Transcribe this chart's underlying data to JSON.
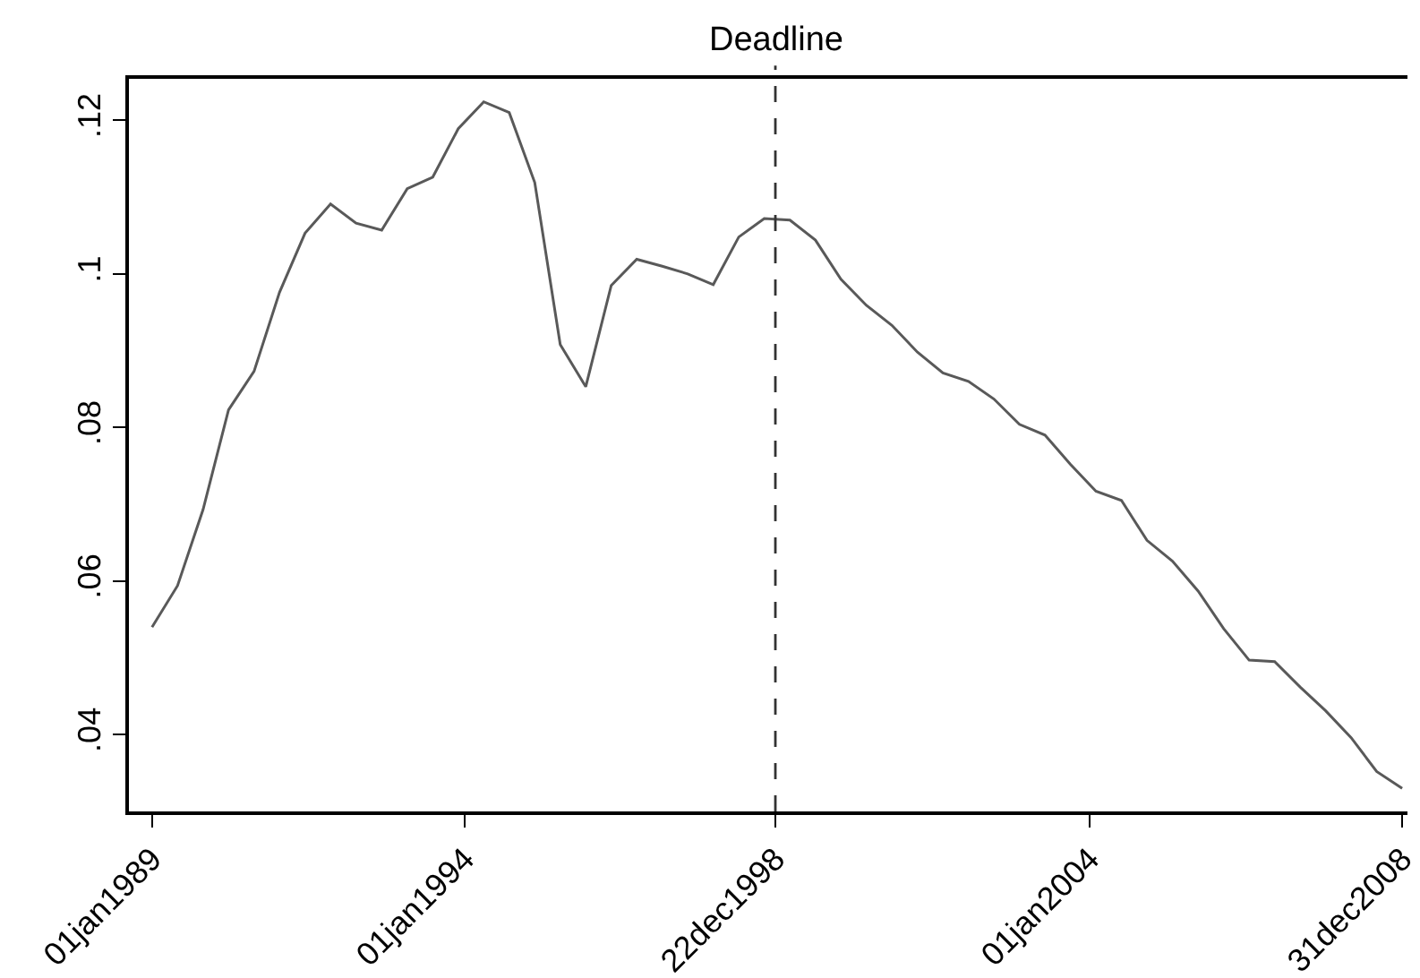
{
  "chart_data": {
    "type": "line",
    "x": [
      "1989-01-01",
      "1989-05-30",
      "1989-10-26",
      "1990-03-24",
      "1990-08-20",
      "1991-01-16",
      "1991-06-14",
      "1991-11-10",
      "1992-04-07",
      "1992-09-04",
      "1993-01-31",
      "1993-06-29",
      "1993-11-25",
      "1994-04-23",
      "1994-09-19",
      "1995-02-15",
      "1995-07-14",
      "1995-12-10",
      "1996-05-07",
      "1996-10-03",
      "1997-03-01",
      "1997-07-28",
      "1997-12-24",
      "1998-05-22",
      "1998-10-18",
      "1999-03-17",
      "1999-08-13",
      "2000-01-09",
      "2000-06-06",
      "2000-11-02",
      "2001-03-31",
      "2001-08-27",
      "2002-01-23",
      "2002-06-21",
      "2002-11-17",
      "2003-04-15",
      "2003-09-11",
      "2004-02-07",
      "2004-07-05",
      "2004-12-01",
      "2005-04-29",
      "2005-09-26",
      "2006-02-22",
      "2006-07-21",
      "2006-12-17",
      "2007-05-15",
      "2007-10-11",
      "2008-03-08",
      "2008-08-04",
      "2008-12-31"
    ],
    "series": [
      {
        "color": "#595959",
        "values": [
          0.054,
          0.0594,
          0.0693,
          0.0823,
          0.0873,
          0.0976,
          0.1053,
          0.1091,
          0.1066,
          0.1057,
          0.1111,
          0.1126,
          0.1189,
          0.1224,
          0.121,
          0.1119,
          0.0908,
          0.0853,
          0.0985,
          0.1019,
          0.101,
          0.1,
          0.0986,
          0.1048,
          0.1072,
          0.107,
          0.1044,
          0.0993,
          0.0959,
          0.0933,
          0.0898,
          0.0871,
          0.086,
          0.0837,
          0.0804,
          0.079,
          0.0752,
          0.0717,
          0.0705,
          0.0653,
          0.0626,
          0.0587,
          0.0538,
          0.0497,
          0.0495,
          0.0462,
          0.0431,
          0.0396,
          0.0352,
          0.033
        ]
      }
    ],
    "xlim": [
      "1988-08-19",
      "2009-01-31"
    ],
    "xticks": [
      {
        "value": "1989-01-01",
        "label": "01jan1989"
      },
      {
        "value": "1994-01-01",
        "label": "01jan1994"
      },
      {
        "value": "1998-12-22",
        "label": "22dec1998"
      },
      {
        "value": "2004-01-01",
        "label": "01jan2004"
      },
      {
        "value": "2008-12-31",
        "label": "31dec2008"
      }
    ],
    "ylim": [
      0.03,
      0.1254
    ],
    "yticks": [
      {
        "value": 0.04,
        "label": ".04"
      },
      {
        "value": 0.06,
        "label": ".06"
      },
      {
        "value": 0.08,
        "label": ".08"
      },
      {
        "value": 0.1,
        "label": ".1"
      },
      {
        "value": 0.12,
        "label": ".12"
      }
    ],
    "ref_lines": [
      {
        "axis": "x",
        "value": "1998-12-22",
        "label": "Deadline",
        "line_style": "dashed",
        "color": "#333333"
      }
    ],
    "line_style": "solid"
  }
}
